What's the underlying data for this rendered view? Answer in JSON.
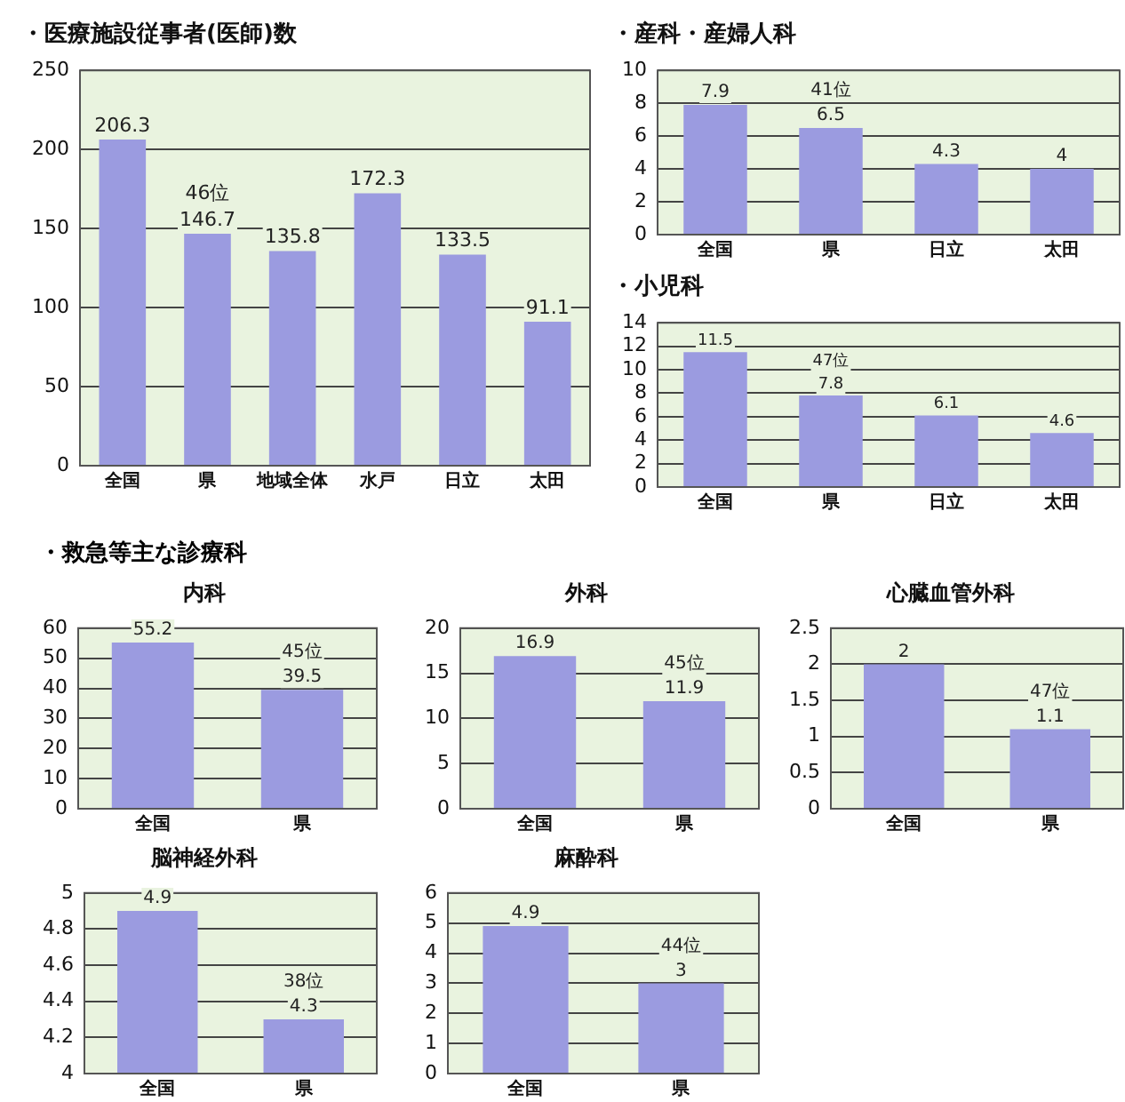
{
  "chart_data": [
    {
      "type": "bar",
      "title": "・医療施設従事者(医師)数",
      "categories": [
        "全国",
        "県",
        "地域全体",
        "水戸",
        "日立",
        "太田"
      ],
      "values": [
        206.3,
        146.7,
        135.8,
        172.3,
        133.5,
        91.1
      ],
      "color": "#9b9be0",
      "ylim": [
        0,
        250
      ],
      "yticks": [
        0,
        50,
        100,
        150,
        200,
        250
      ],
      "grid": "y",
      "data_labels": true,
      "annotations": [
        "46位"
      ]
    },
    {
      "type": "bar",
      "title": "・産科・産婦人科",
      "categories": [
        "全国",
        "県",
        "日立",
        "太田"
      ],
      "values": [
        7.9,
        6.5,
        4.3,
        4
      ],
      "color": "#9b9be0",
      "ylim": [
        0,
        10
      ],
      "yticks": [
        0,
        2,
        4,
        6,
        8,
        10
      ],
      "grid": "y",
      "data_labels": true,
      "annotations": [
        "41位"
      ]
    },
    {
      "type": "bar",
      "title": "・小児科",
      "categories": [
        "全国",
        "県",
        "日立",
        "太田"
      ],
      "values": [
        11.5,
        7.8,
        6.1,
        4.6
      ],
      "color": "#9b9be0",
      "ylim": [
        0,
        14
      ],
      "yticks": [
        0,
        2,
        4,
        6,
        8,
        10,
        12,
        14
      ],
      "grid": "y",
      "data_labels": true,
      "annotations": [
        "47位"
      ]
    },
    {
      "type": "other",
      "title": "・救急等主な診療科"
    },
    {
      "type": "bar",
      "title": "内科",
      "categories": [
        "全国",
        "県"
      ],
      "values": [
        55.2,
        39.5
      ],
      "color": "#9b9be0",
      "ylim": [
        0,
        60
      ],
      "yticks": [
        0,
        10,
        20,
        30,
        40,
        50,
        60
      ],
      "grid": "y",
      "data_labels": true,
      "annotations": [
        "45位"
      ]
    },
    {
      "type": "bar",
      "title": "外科",
      "categories": [
        "全国",
        "県"
      ],
      "values": [
        16.9,
        11.9
      ],
      "color": "#9b9be0",
      "ylim": [
        0,
        20
      ],
      "yticks": [
        0,
        5,
        10,
        15,
        20
      ],
      "grid": "y",
      "data_labels": true,
      "annotations": [
        "45位"
      ]
    },
    {
      "type": "bar",
      "title": "心臓血管外科",
      "categories": [
        "全国",
        "県"
      ],
      "values": [
        2,
        1.1
      ],
      "color": "#9b9be0",
      "ylim": [
        0,
        2.5
      ],
      "yticks": [
        0,
        0.5,
        1,
        1.5,
        2,
        2.5
      ],
      "grid": "y",
      "data_labels": true,
      "annotations": [
        "47位"
      ]
    },
    {
      "type": "bar",
      "title": "脳神経外科",
      "categories": [
        "全国",
        "県"
      ],
      "values": [
        4.9,
        4.3
      ],
      "color": "#9b9be0",
      "ylim": [
        4,
        5
      ],
      "yticks": [
        4,
        4.2,
        4.4,
        4.6,
        4.8,
        5
      ],
      "grid": "y",
      "data_labels": true,
      "annotations": [
        "38位"
      ]
    },
    {
      "type": "bar",
      "title": "麻酔科",
      "categories": [
        "全国",
        "県"
      ],
      "values": [
        4.9,
        3
      ],
      "color": "#9b9be0",
      "ylim": [
        0,
        6
      ],
      "yticks": [
        0,
        1,
        2,
        3,
        4,
        5,
        6
      ],
      "grid": "y",
      "data_labels": true,
      "annotations": [
        "44位"
      ]
    }
  ]
}
